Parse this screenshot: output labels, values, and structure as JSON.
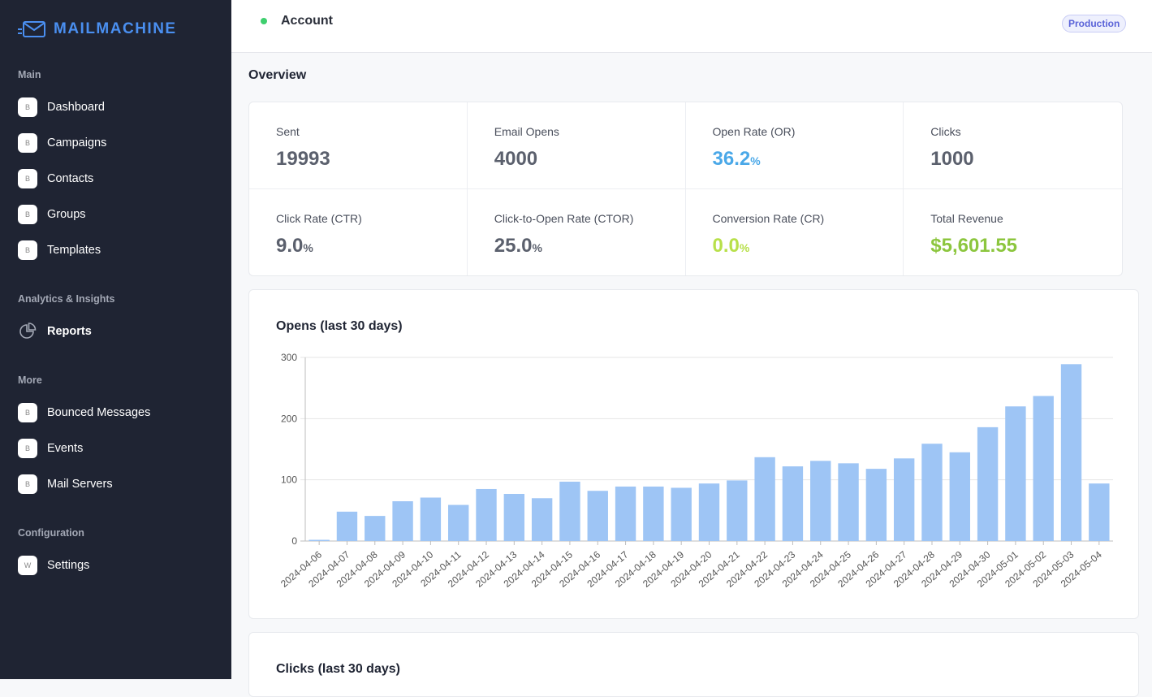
{
  "brand": {
    "name": "MAILMACHINE"
  },
  "sidebar": {
    "sections": [
      {
        "label": "Main",
        "items": [
          {
            "label": "Dashboard",
            "icon": "B"
          },
          {
            "label": "Campaigns",
            "icon": "B"
          },
          {
            "label": "Contacts",
            "icon": "B"
          },
          {
            "label": "Groups",
            "icon": "B"
          },
          {
            "label": "Templates",
            "icon": "B"
          }
        ]
      },
      {
        "label": "Analytics & Insights",
        "items": [
          {
            "label": "Reports",
            "icon": "pie-chart"
          }
        ]
      },
      {
        "label": "More",
        "items": [
          {
            "label": "Bounced Messages",
            "icon": "B"
          },
          {
            "label": "Events",
            "icon": "B"
          },
          {
            "label": "Mail Servers",
            "icon": "B"
          }
        ]
      },
      {
        "label": "Configuration",
        "items": [
          {
            "label": "Settings",
            "icon": "W"
          }
        ]
      }
    ]
  },
  "header": {
    "title": "Account",
    "env_badge": "Production",
    "status_color": "#3ecf6e"
  },
  "overview": {
    "title": "Overview",
    "stats": [
      {
        "label": "Sent",
        "value": "19993",
        "suffix": "",
        "color": "#5b606d"
      },
      {
        "label": "Email Opens",
        "value": "4000",
        "suffix": "",
        "color": "#5b606d"
      },
      {
        "label": "Open Rate (OR)",
        "value": "36.2",
        "suffix": "%",
        "color": "#4aa8e8"
      },
      {
        "label": "Clicks",
        "value": "1000",
        "suffix": "",
        "color": "#5b606d"
      },
      {
        "label": "Click Rate (CTR)",
        "value": "9.0",
        "suffix": "%",
        "color": "#5b606d"
      },
      {
        "label": "Click-to-Open Rate (CTOR)",
        "value": "25.0",
        "suffix": "%",
        "color": "#5b606d"
      },
      {
        "label": "Conversion Rate (CR)",
        "value": "0.0",
        "suffix": "%",
        "color": "#b8e04a"
      },
      {
        "label": "Total Revenue",
        "value": "$5,601.55",
        "suffix": "",
        "color": "#8cc63e"
      }
    ]
  },
  "chart_data": {
    "type": "bar",
    "title": "Opens (last 30 days)",
    "xlabel": "",
    "ylabel": "",
    "ylim": [
      0,
      300
    ],
    "yticks": [
      0,
      100,
      200,
      300
    ],
    "bar_color": "#9ec5f5",
    "categories": [
      "2024-04-06",
      "2024-04-07",
      "2024-04-08",
      "2024-04-09",
      "2024-04-10",
      "2024-04-11",
      "2024-04-12",
      "2024-04-13",
      "2024-04-14",
      "2024-04-15",
      "2024-04-16",
      "2024-04-17",
      "2024-04-18",
      "2024-04-19",
      "2024-04-20",
      "2024-04-21",
      "2024-04-22",
      "2024-04-23",
      "2024-04-24",
      "2024-04-25",
      "2024-04-26",
      "2024-04-27",
      "2024-04-28",
      "2024-04-29",
      "2024-04-30",
      "2024-05-01",
      "2024-05-02",
      "2024-05-03",
      "2024-05-04"
    ],
    "values": [
      2,
      48,
      41,
      65,
      71,
      59,
      85,
      77,
      70,
      97,
      82,
      89,
      89,
      87,
      94,
      99,
      137,
      122,
      131,
      127,
      118,
      135,
      159,
      145,
      186,
      220,
      237,
      289,
      94
    ]
  },
  "clicks_card": {
    "title": "Clicks (last 30 days)"
  }
}
